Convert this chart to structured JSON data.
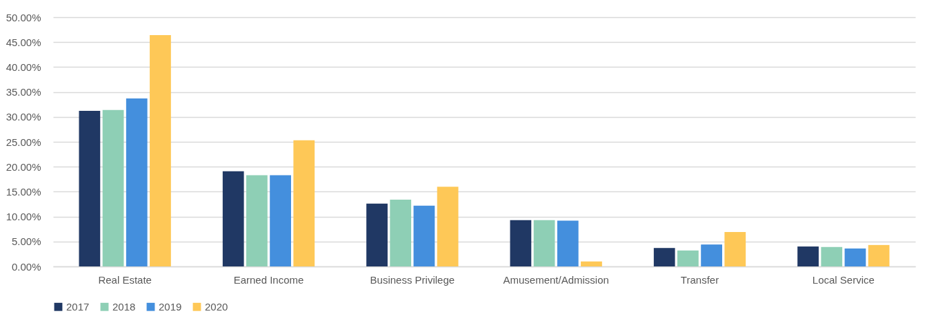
{
  "chart_data": {
    "type": "bar",
    "categories": [
      "Real Estate",
      "Earned Income",
      "Business Privilege",
      "Amusement/Admission",
      "Transfer",
      "Local Service"
    ],
    "series": [
      {
        "name": "2017",
        "color": "#203864",
        "values": [
          31.2,
          19.1,
          12.6,
          9.3,
          3.7,
          4.0
        ]
      },
      {
        "name": "2018",
        "color": "#8ecfb5",
        "values": [
          31.4,
          18.3,
          13.4,
          9.3,
          3.2,
          3.9
        ]
      },
      {
        "name": "2019",
        "color": "#448fdd",
        "values": [
          33.7,
          18.3,
          12.2,
          9.2,
          4.4,
          3.6
        ]
      },
      {
        "name": "2020",
        "color": "#fec857",
        "values": [
          46.4,
          25.3,
          16.0,
          1.0,
          6.9,
          4.3
        ]
      }
    ],
    "ylim": [
      0,
      50
    ],
    "yticks": [
      {
        "value": 0,
        "label": "0.00%"
      },
      {
        "value": 5,
        "label": "5.00%"
      },
      {
        "value": 10,
        "label": "10.00%"
      },
      {
        "value": 15,
        "label": "15.00%"
      },
      {
        "value": 20,
        "label": "20.00%"
      },
      {
        "value": 25,
        "label": "25.00%"
      },
      {
        "value": 30,
        "label": "30.00%"
      },
      {
        "value": 35,
        "label": "35.00%"
      },
      {
        "value": 40,
        "label": "40.00%"
      },
      {
        "value": 45,
        "label": "45.00%"
      },
      {
        "value": 50,
        "label": "50.00%"
      }
    ],
    "grid": "y",
    "legend": "bottom"
  }
}
